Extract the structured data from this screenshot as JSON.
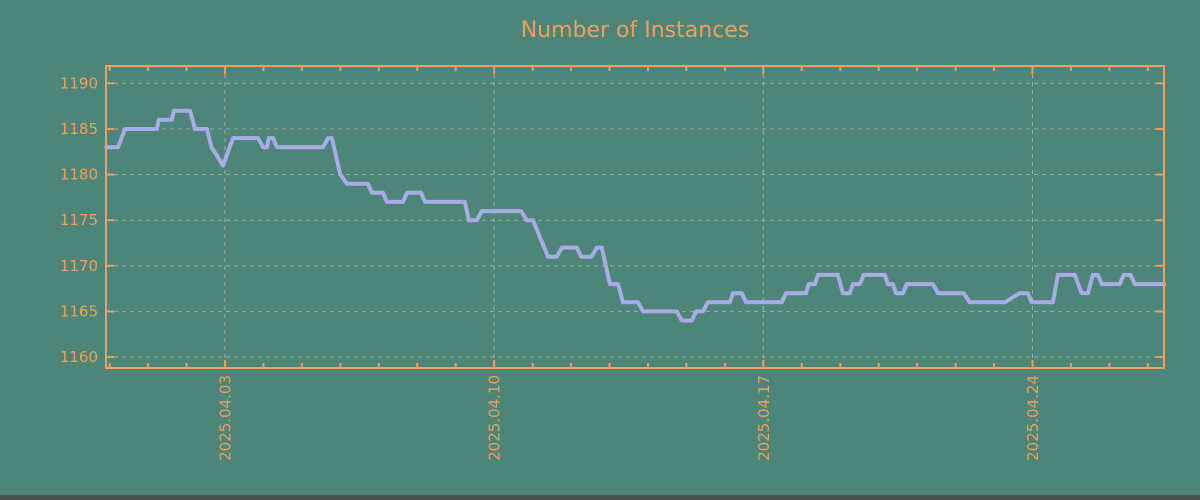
{
  "page": {
    "background_color": "#4d8579",
    "footer_bar_color": "#4a524f"
  },
  "chart_data": {
    "type": "line",
    "title": "Number of Instances",
    "title_color": "#f0a05a",
    "axis_color": "#f0a05a",
    "tick_label_color": "#f0a05a",
    "grid": {
      "show": true,
      "style": "dashed",
      "color": "#a9a9a9"
    },
    "legend": "none",
    "x_unit": "days relative to 2025-04-03 00:00",
    "x_range": [
      -3.094,
      24.42
    ],
    "y_range": [
      1158.8,
      1191.9
    ],
    "y_ticks": [
      1160,
      1165,
      1170,
      1175,
      1180,
      1185,
      1190
    ],
    "x_major_ticks": [
      {
        "pos": 0,
        "label": "2025.04.03"
      },
      {
        "pos": 7,
        "label": "2025.04.10"
      },
      {
        "pos": 14,
        "label": "2025.04.17"
      },
      {
        "pos": 21,
        "label": "2025.04.24"
      }
    ],
    "x_minor_tick_interval_days": 1,
    "series": [
      {
        "name": "instances",
        "color": "#a9abe6",
        "points": [
          [
            -3.09,
            1183
          ],
          [
            -2.78,
            1183
          ],
          [
            -2.6,
            1185
          ],
          [
            -1.77,
            1185
          ],
          [
            -1.72,
            1186
          ],
          [
            -1.38,
            1186
          ],
          [
            -1.33,
            1187
          ],
          [
            -0.91,
            1187
          ],
          [
            -0.78,
            1185
          ],
          [
            -0.47,
            1185
          ],
          [
            -0.35,
            1183
          ],
          [
            -0.05,
            1181
          ],
          [
            0.21,
            1184
          ],
          [
            0.86,
            1184
          ],
          [
            0.99,
            1183
          ],
          [
            1.09,
            1183
          ],
          [
            1.14,
            1184
          ],
          [
            1.25,
            1184
          ],
          [
            1.35,
            1183
          ],
          [
            2.55,
            1183
          ],
          [
            2.68,
            1184
          ],
          [
            2.78,
            1184
          ],
          [
            3.0,
            1180
          ],
          [
            3.17,
            1179
          ],
          [
            3.72,
            1179
          ],
          [
            3.82,
            1178
          ],
          [
            4.11,
            1178
          ],
          [
            4.21,
            1177
          ],
          [
            4.63,
            1177
          ],
          [
            4.73,
            1178
          ],
          [
            5.1,
            1178
          ],
          [
            5.2,
            1177
          ],
          [
            6.24,
            1177
          ],
          [
            6.34,
            1175
          ],
          [
            6.55,
            1175
          ],
          [
            6.68,
            1176
          ],
          [
            7.7,
            1176
          ],
          [
            7.85,
            1175
          ],
          [
            8.01,
            1175
          ],
          [
            8.4,
            1171
          ],
          [
            8.63,
            1171
          ],
          [
            8.76,
            1172
          ],
          [
            9.15,
            1172
          ],
          [
            9.26,
            1171
          ],
          [
            9.54,
            1171
          ],
          [
            9.67,
            1172
          ],
          [
            9.8,
            1172
          ],
          [
            10.01,
            1168
          ],
          [
            10.22,
            1168
          ],
          [
            10.35,
            1166
          ],
          [
            10.74,
            1166
          ],
          [
            10.87,
            1165
          ],
          [
            11.75,
            1165
          ],
          [
            11.88,
            1164
          ],
          [
            12.14,
            1164
          ],
          [
            12.25,
            1165
          ],
          [
            12.43,
            1165
          ],
          [
            12.56,
            1166
          ],
          [
            13.13,
            1166
          ],
          [
            13.21,
            1167
          ],
          [
            13.44,
            1167
          ],
          [
            13.55,
            1166
          ],
          [
            14.48,
            1166
          ],
          [
            14.59,
            1167
          ],
          [
            15.11,
            1167
          ],
          [
            15.18,
            1168
          ],
          [
            15.34,
            1168
          ],
          [
            15.42,
            1169
          ],
          [
            15.94,
            1169
          ],
          [
            16.07,
            1167
          ],
          [
            16.25,
            1167
          ],
          [
            16.33,
            1168
          ],
          [
            16.51,
            1168
          ],
          [
            16.61,
            1169
          ],
          [
            17.16,
            1169
          ],
          [
            17.24,
            1168
          ],
          [
            17.37,
            1168
          ],
          [
            17.45,
            1167
          ],
          [
            17.63,
            1167
          ],
          [
            17.73,
            1168
          ],
          [
            18.41,
            1168
          ],
          [
            18.54,
            1167
          ],
          [
            19.21,
            1167
          ],
          [
            19.37,
            1166
          ],
          [
            20.28,
            1166
          ],
          [
            20.67,
            1167
          ],
          [
            20.88,
            1167
          ],
          [
            20.98,
            1166
          ],
          [
            21.53,
            1166
          ],
          [
            21.66,
            1169
          ],
          [
            22.1,
            1169
          ],
          [
            22.28,
            1167
          ],
          [
            22.44,
            1167
          ],
          [
            22.57,
            1169
          ],
          [
            22.7,
            1169
          ],
          [
            22.8,
            1168
          ],
          [
            23.27,
            1168
          ],
          [
            23.37,
            1169
          ],
          [
            23.55,
            1169
          ],
          [
            23.66,
            1168
          ],
          [
            24.42,
            1168
          ]
        ]
      }
    ]
  }
}
